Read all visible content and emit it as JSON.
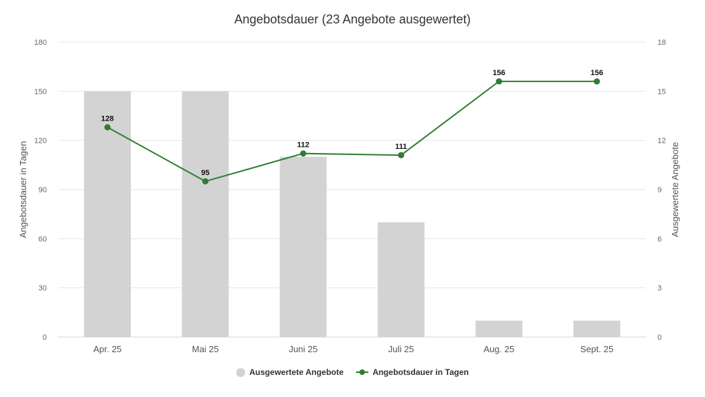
{
  "chart_data": {
    "type": "bar",
    "title": "Angebotsdauer (23 Angebote ausgewertet)",
    "categories": [
      "Apr. 25",
      "Mai 25",
      "Juni 25",
      "Juli 25",
      "Aug. 25",
      "Sept. 25"
    ],
    "series": [
      {
        "name": "Ausgewertete Angebote",
        "type": "bar",
        "axis": "right",
        "color": "#d3d3d3",
        "values": [
          15,
          15,
          11,
          7,
          1,
          1
        ]
      },
      {
        "name": "Angebotsdauer in Tagen",
        "type": "line",
        "axis": "left",
        "color": "#2e7d32",
        "values": [
          128,
          95,
          112,
          111,
          156,
          156
        ]
      }
    ],
    "ylabel": "Angebotsdauer in Tagen",
    "ylabel_right": "Ausgewertete Angebote",
    "ylim": [
      0,
      180
    ],
    "ylim_right": [
      0,
      18
    ],
    "yticks": [
      0,
      30,
      60,
      90,
      120,
      150,
      180
    ],
    "yticks_right": [
      0,
      3,
      6,
      9,
      12,
      15,
      18
    ],
    "grid": true,
    "legend_position": "bottom"
  },
  "legend": {
    "bars_label": "Ausgewertete Angebote",
    "line_label": "Angebotsdauer in Tagen"
  }
}
